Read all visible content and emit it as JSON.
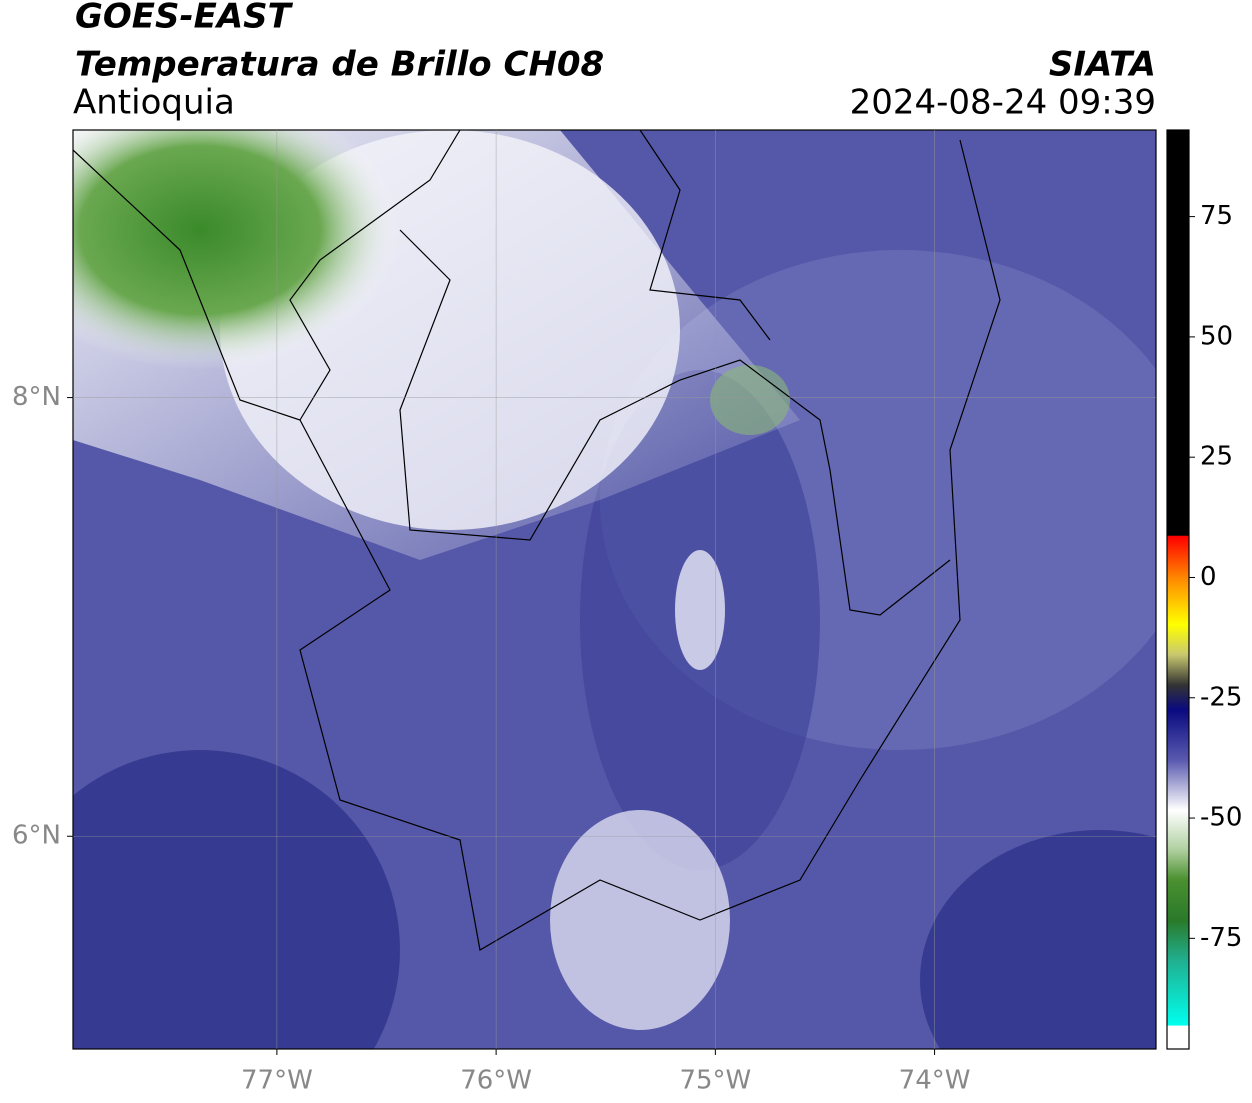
{
  "header": {
    "title": "GOES-EAST",
    "subtitle": "Temperatura de Brillo CH08",
    "region": "Antioquia",
    "source": "SIATA",
    "datetime": "2024-08-24 09:39"
  },
  "map": {
    "xlim": [
      -77.93,
      -72.99
    ],
    "ylim": [
      5.03,
      9.22
    ],
    "xticks": [
      {
        "value": -77,
        "label": "77°W"
      },
      {
        "value": -76,
        "label": "76°W"
      },
      {
        "value": -75,
        "label": "75°W"
      },
      {
        "value": -74,
        "label": "74°W"
      }
    ],
    "yticks": [
      {
        "value": 8,
        "label": "8°N"
      },
      {
        "value": 6,
        "label": "6°N"
      }
    ],
    "grid": true
  },
  "colorbar": {
    "lim": [
      -98,
      93
    ],
    "ticks": [
      75,
      50,
      25,
      0,
      -25,
      -50,
      -75
    ]
  }
}
